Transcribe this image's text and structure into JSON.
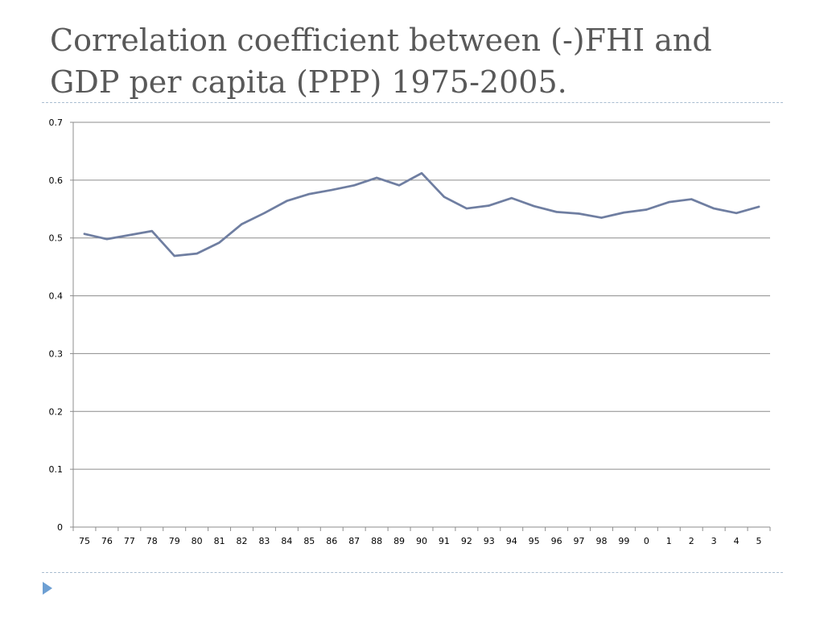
{
  "slide": {
    "title": "Correlation coefficient between (-)FHI and GDP per capita (PPP) 1975-2005."
  },
  "colors": {
    "line": "#6f7ea1",
    "grid": "#8c8c8c",
    "divider": "#a9bdd0",
    "bullet": "#6d9fd3",
    "title": "#595959"
  },
  "icons": {
    "bullet": "triangle-bullet-icon"
  },
  "chart_data": {
    "type": "line",
    "title": "",
    "xlabel": "",
    "ylabel": "",
    "ylim": [
      0,
      0.7
    ],
    "yticks": [
      "0",
      "0.1",
      "0.2",
      "0.3",
      "0.4",
      "0.5",
      "0.6",
      "0.7"
    ],
    "grid": true,
    "legend": "none",
    "categories": [
      "75",
      "76",
      "77",
      "78",
      "79",
      "80",
      "81",
      "82",
      "83",
      "84",
      "85",
      "86",
      "87",
      "88",
      "89",
      "90",
      "91",
      "92",
      "93",
      "94",
      "95",
      "96",
      "97",
      "98",
      "99",
      "0",
      "1",
      "2",
      "3",
      "4",
      "5"
    ],
    "series": [
      {
        "values": [
          0.507,
          0.498,
          0.505,
          0.512,
          0.469,
          0.473,
          0.492,
          0.524,
          0.543,
          0.564,
          0.576,
          0.583,
          0.591,
          0.604,
          0.591,
          0.612,
          0.571,
          0.551,
          0.556,
          0.569,
          0.555,
          0.545,
          0.542,
          0.535,
          0.544,
          0.549,
          0.562,
          0.567,
          0.551,
          0.543,
          0.554
        ]
      }
    ]
  }
}
